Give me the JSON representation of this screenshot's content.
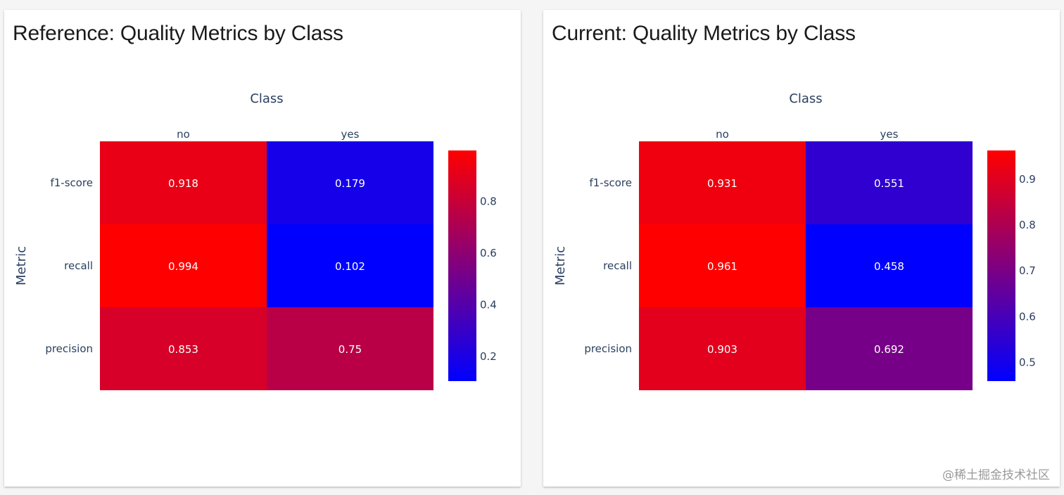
{
  "watermark": "@稀土掘金技术社区",
  "colorscale": {
    "low": "#0000ff",
    "high": "#ff0000"
  },
  "chart_data": [
    {
      "type": "heatmap",
      "title": "Reference: Quality Metrics by Class",
      "xlabel": "Class",
      "ylabel": "Metric",
      "x": [
        "no",
        "yes"
      ],
      "y": [
        "f1-score",
        "recall",
        "precision"
      ],
      "z": [
        [
          0.918,
          0.179
        ],
        [
          0.994,
          0.102
        ],
        [
          0.853,
          0.75
        ]
      ],
      "z_labels": [
        [
          "0.918",
          "0.179"
        ],
        [
          "0.994",
          "0.102"
        ],
        [
          "0.853",
          "0.75"
        ]
      ],
      "colorbar": {
        "min": 0.102,
        "max": 0.994,
        "ticks": [
          0.2,
          0.4,
          0.6,
          0.8
        ],
        "tick_labels": [
          "0.2",
          "0.4",
          "0.6",
          "0.8"
        ]
      }
    },
    {
      "type": "heatmap",
      "title": "Current: Quality Metrics by Class",
      "xlabel": "Class",
      "ylabel": "Metric",
      "x": [
        "no",
        "yes"
      ],
      "y": [
        "f1-score",
        "recall",
        "precision"
      ],
      "z": [
        [
          0.931,
          0.551
        ],
        [
          0.961,
          0.458
        ],
        [
          0.903,
          0.692
        ]
      ],
      "z_labels": [
        [
          "0.931",
          "0.551"
        ],
        [
          "0.961",
          "0.458"
        ],
        [
          "0.903",
          "0.692"
        ]
      ],
      "colorbar": {
        "min": 0.458,
        "max": 0.961,
        "ticks": [
          0.5,
          0.6,
          0.7,
          0.8,
          0.9
        ],
        "tick_labels": [
          "0.5",
          "0.6",
          "0.7",
          "0.8",
          "0.9"
        ]
      }
    }
  ]
}
